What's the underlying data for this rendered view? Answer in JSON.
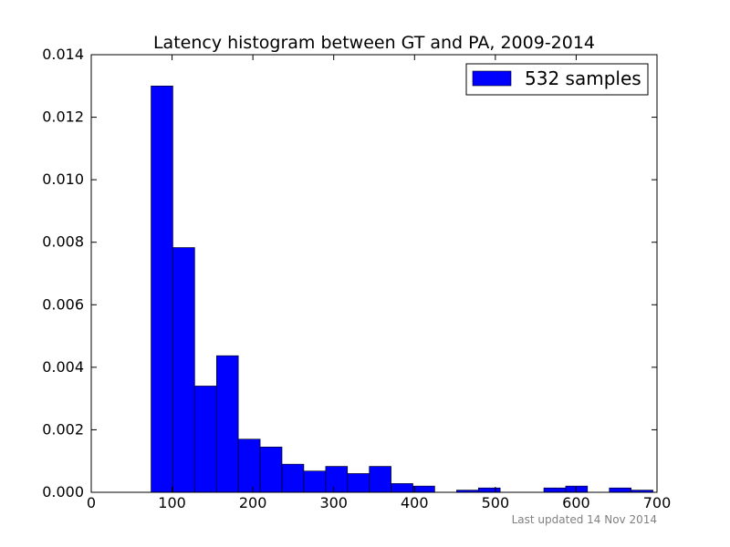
{
  "chart_data": {
    "type": "bar",
    "title": "Latency histogram between GT and PA, 2009-2014",
    "xlabel": "",
    "ylabel": "",
    "xlim": [
      0,
      700
    ],
    "ylim": [
      0,
      0.014
    ],
    "x_ticks": [
      0,
      100,
      200,
      300,
      400,
      500,
      600,
      700
    ],
    "x_tick_labels": [
      "0",
      "100",
      "200",
      "300",
      "400",
      "500",
      "600",
      "700"
    ],
    "y_ticks": [
      0,
      0.002,
      0.004,
      0.006,
      0.008,
      0.01,
      0.012,
      0.014
    ],
    "y_tick_labels": [
      "0.000",
      "0.002",
      "0.004",
      "0.006",
      "0.008",
      "0.010",
      "0.012",
      "0.014"
    ],
    "grid": false,
    "legend": {
      "position": "top-right",
      "entries": [
        "532 samples"
      ]
    },
    "series": [
      {
        "name": "532 samples",
        "color": "#0000ff",
        "bins": [
          {
            "x0": 74,
            "x1": 101,
            "value": 0.013
          },
          {
            "x0": 101,
            "x1": 128,
            "value": 0.00783
          },
          {
            "x0": 128,
            "x1": 155,
            "value": 0.0034
          },
          {
            "x0": 155,
            "x1": 182,
            "value": 0.00437
          },
          {
            "x0": 182,
            "x1": 209,
            "value": 0.0017
          },
          {
            "x0": 209,
            "x1": 236,
            "value": 0.00145
          },
          {
            "x0": 236,
            "x1": 263,
            "value": 0.0009
          },
          {
            "x0": 263,
            "x1": 290,
            "value": 0.00068
          },
          {
            "x0": 290,
            "x1": 317,
            "value": 0.00083
          },
          {
            "x0": 317,
            "x1": 344,
            "value": 0.0006
          },
          {
            "x0": 344,
            "x1": 371,
            "value": 0.00083
          },
          {
            "x0": 371,
            "x1": 398,
            "value": 0.00028
          },
          {
            "x0": 398,
            "x1": 425,
            "value": 0.0002
          },
          {
            "x0": 425,
            "x1": 452,
            "value": 0.0
          },
          {
            "x0": 452,
            "x1": 479,
            "value": 7e-05
          },
          {
            "x0": 479,
            "x1": 506,
            "value": 0.00014
          },
          {
            "x0": 506,
            "x1": 533,
            "value": 0.0
          },
          {
            "x0": 533,
            "x1": 560,
            "value": 0.0
          },
          {
            "x0": 560,
            "x1": 587,
            "value": 0.00014
          },
          {
            "x0": 587,
            "x1": 614,
            "value": 0.0002
          },
          {
            "x0": 614,
            "x1": 641,
            "value": 0.0
          },
          {
            "x0": 641,
            "x1": 668,
            "value": 0.00014
          },
          {
            "x0": 668,
            "x1": 695,
            "value": 7e-05
          }
        ]
      }
    ]
  },
  "footnote": "Last updated 14 Nov 2014"
}
